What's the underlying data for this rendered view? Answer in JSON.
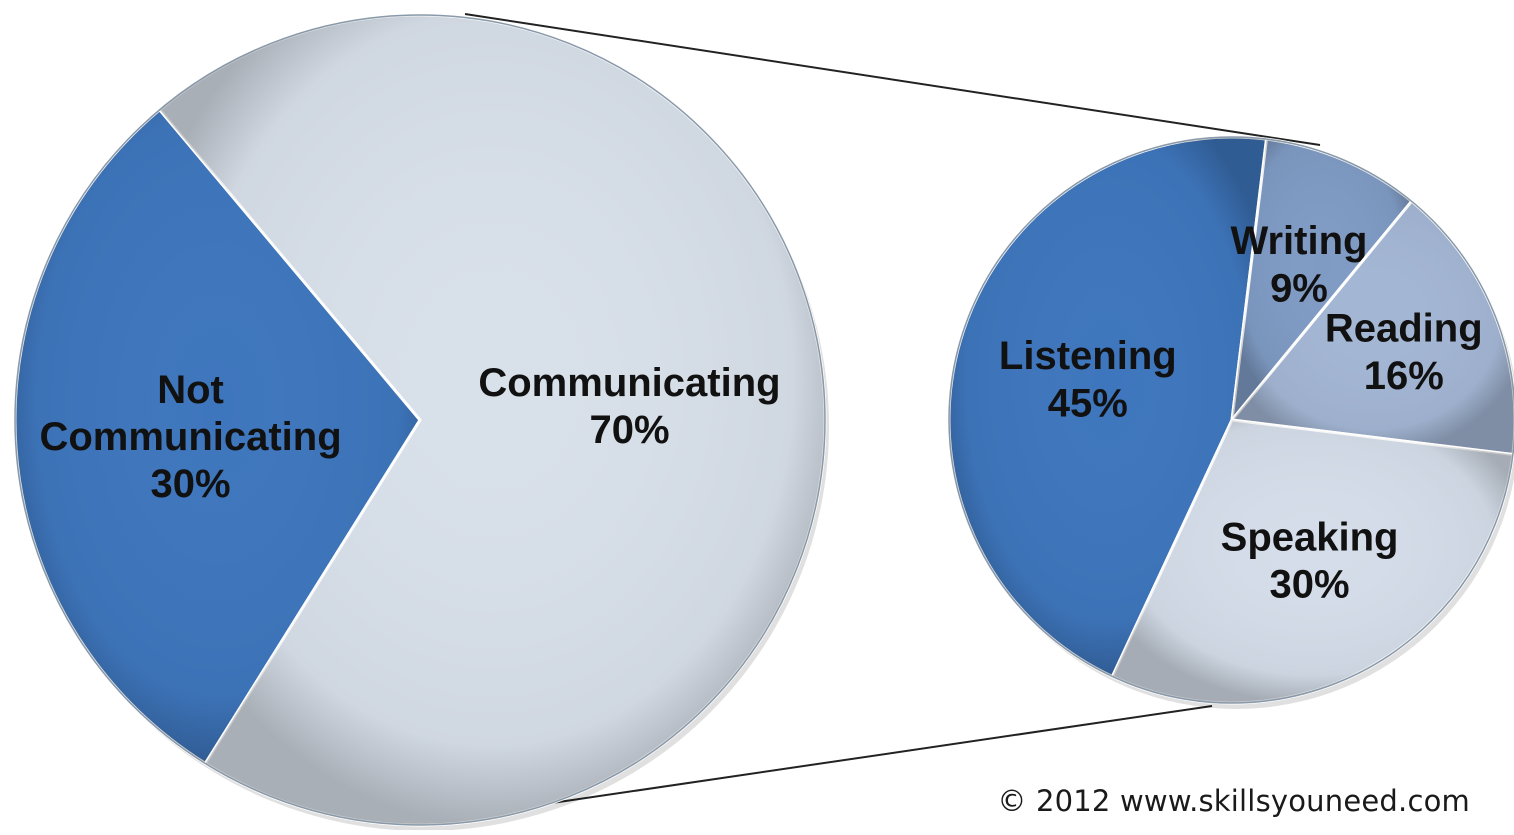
{
  "chart_data": [
    {
      "type": "pie",
      "slices": [
        {
          "label_lines": [
            "Not",
            "Communicating"
          ],
          "value": 30,
          "value_label": "30%",
          "color": "#3e76bd"
        },
        {
          "label_lines": [
            "Communicating"
          ],
          "value": 70,
          "value_label": "70%",
          "color": "#d8e0ea"
        }
      ],
      "title": "",
      "legend": "none"
    },
    {
      "type": "pie",
      "slices": [
        {
          "label_lines": [
            "Listening"
          ],
          "value": 45,
          "value_label": "45%",
          "color": "#3e76bd"
        },
        {
          "label_lines": [
            "Writing"
          ],
          "value": 9,
          "value_label": "9%",
          "color": "#7f9bc4"
        },
        {
          "label_lines": [
            "Reading"
          ],
          "value": 16,
          "value_label": "16%",
          "color": "#a3b6d4"
        },
        {
          "label_lines": [
            "Speaking"
          ],
          "value": 30,
          "value_label": "30%",
          "color": "#d4dde9"
        }
      ],
      "title": "",
      "legend": "none"
    }
  ],
  "credit": "© 2012 www.skillsyouneed.com"
}
